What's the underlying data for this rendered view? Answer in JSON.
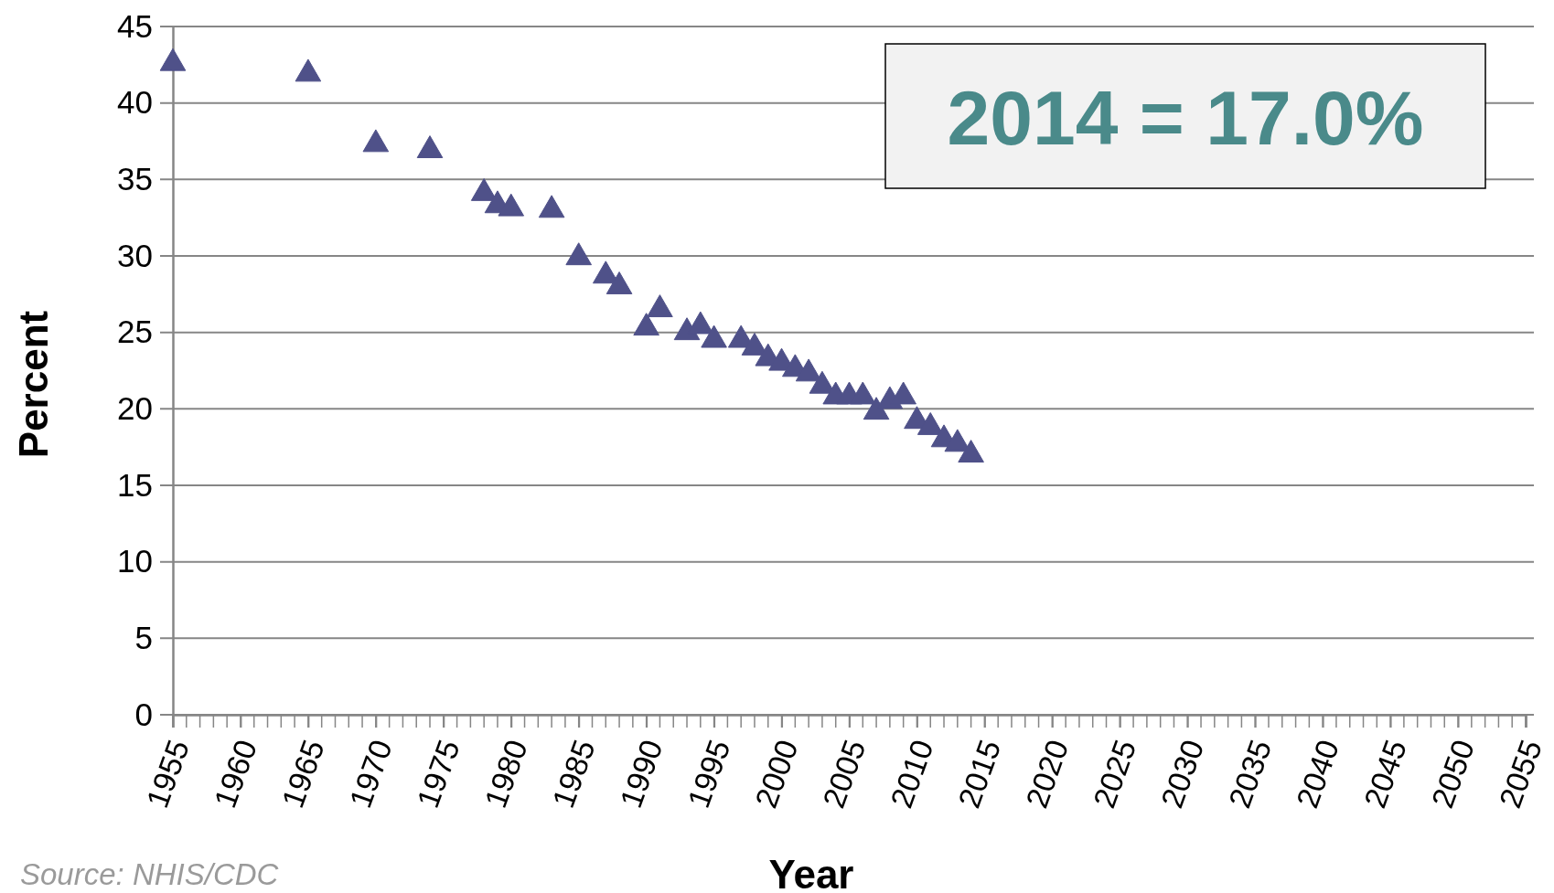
{
  "chart_data": {
    "type": "scatter",
    "xlabel": "Year",
    "ylabel": "Percent",
    "marker": "triangle",
    "grid": "y",
    "x": [
      1955,
      1965,
      1970,
      1974,
      1978,
      1979,
      1980,
      1983,
      1985,
      1987,
      1988,
      1990,
      1991,
      1993,
      1994,
      1995,
      1997,
      1998,
      1999,
      2000,
      2001,
      2002,
      2003,
      2004,
      2005,
      2006,
      2007,
      2008,
      2009,
      2010,
      2011,
      2012,
      2013,
      2014
    ],
    "series": [
      {
        "color": "#4f5189",
        "values": [
          42.6,
          41.9,
          37.3,
          36.9,
          34.1,
          33.3,
          33.1,
          33.0,
          29.9,
          28.7,
          28.0,
          25.3,
          26.5,
          25.0,
          25.4,
          24.5,
          24.5,
          24.0,
          23.3,
          23.0,
          22.6,
          22.3,
          21.5,
          20.8,
          20.8,
          20.8,
          19.8,
          20.5,
          20.8,
          19.2,
          18.8,
          18.0,
          17.7,
          17.0
        ]
      }
    ],
    "xlim": [
      1955,
      2055
    ],
    "xticks": [
      1955,
      1960,
      1965,
      1970,
      1975,
      1980,
      1985,
      1990,
      1995,
      2000,
      2005,
      2010,
      2015,
      2020,
      2025,
      2030,
      2035,
      2040,
      2045,
      2050,
      2055
    ],
    "ylim": [
      0,
      45
    ],
    "yticks": [
      0,
      5,
      10,
      15,
      20,
      25,
      30,
      35,
      40,
      45
    ],
    "annotations": [
      "2014 = 17.0%",
      "Source:  NHIS/CDC"
    ]
  }
}
